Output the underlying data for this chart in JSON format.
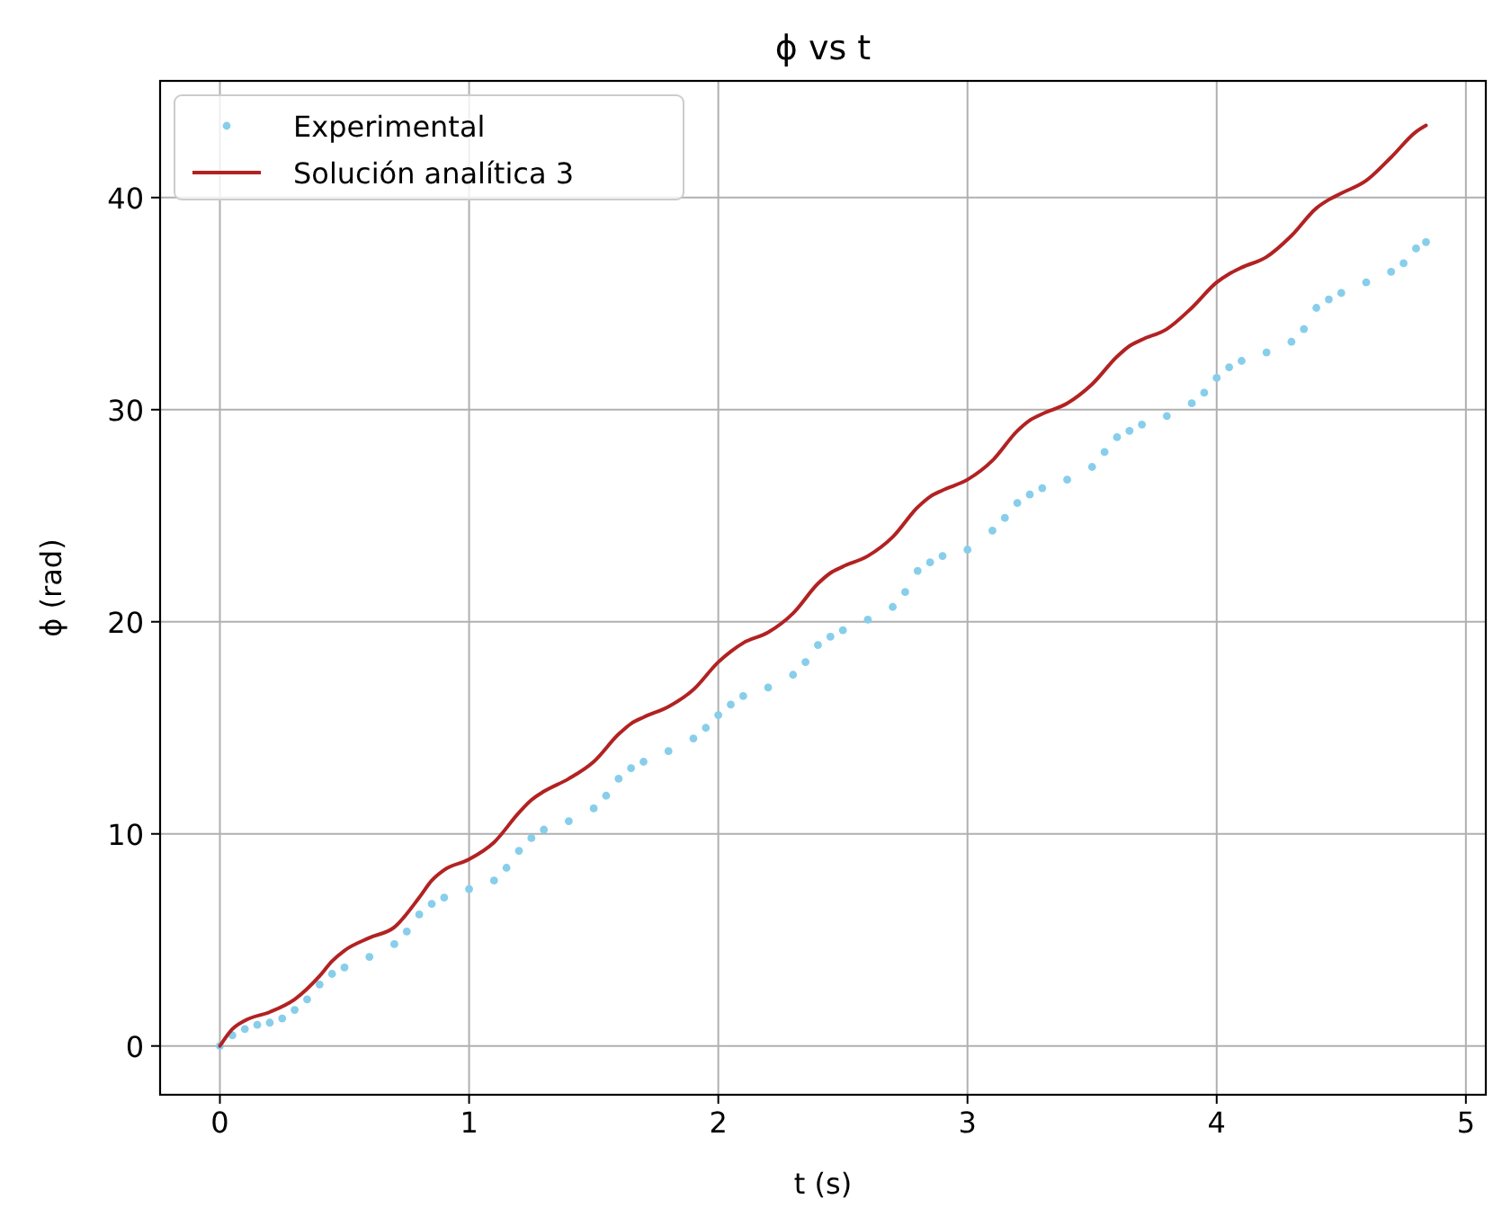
{
  "chart_data": {
    "type": "scatter",
    "title": "ϕ vs t",
    "xlabel": "t (s)",
    "ylabel": "ϕ (rad)",
    "xlim": [
      -0.24,
      5.08
    ],
    "xticks": [
      0,
      1,
      2,
      3,
      4,
      5
    ],
    "ylim": [
      -2.3,
      45.5
    ],
    "yticks": [
      0,
      10,
      20,
      30,
      40
    ],
    "grid": true,
    "legend": "top left",
    "series": [
      {
        "name": "Experimental",
        "marker": "circle",
        "color": "#87ceeb",
        "x": [
          0,
          0.05,
          0.1,
          0.15,
          0.2,
          0.25,
          0.3,
          0.35,
          0.4,
          0.45,
          0.5,
          0.6,
          0.7,
          0.75,
          0.8,
          0.85,
          0.9,
          1.0,
          1.1,
          1.15,
          1.2,
          1.25,
          1.3,
          1.4,
          1.5,
          1.55,
          1.6,
          1.65,
          1.7,
          1.8,
          1.9,
          1.95,
          2.0,
          2.05,
          2.1,
          2.2,
          2.3,
          2.35,
          2.4,
          2.45,
          2.5,
          2.6,
          2.7,
          2.75,
          2.8,
          2.85,
          2.9,
          3.0,
          3.1,
          3.15,
          3.2,
          3.25,
          3.3,
          3.4,
          3.5,
          3.55,
          3.6,
          3.65,
          3.7,
          3.8,
          3.9,
          3.95,
          4.0,
          4.05,
          4.1,
          4.2,
          4.3,
          4.35,
          4.4,
          4.45,
          4.5,
          4.6,
          4.7,
          4.75,
          4.8,
          4.84
        ],
        "values": [
          0,
          0.5,
          0.8,
          1.0,
          1.1,
          1.3,
          1.7,
          2.2,
          2.9,
          3.4,
          3.7,
          4.2,
          4.8,
          5.4,
          6.2,
          6.7,
          7.0,
          7.4,
          7.8,
          8.4,
          9.2,
          9.8,
          10.2,
          10.6,
          11.2,
          11.8,
          12.6,
          13.1,
          13.4,
          13.9,
          14.5,
          15.0,
          15.6,
          16.1,
          16.5,
          16.9,
          17.5,
          18.1,
          18.9,
          19.3,
          19.6,
          20.1,
          20.7,
          21.4,
          22.4,
          22.8,
          23.1,
          23.4,
          24.3,
          24.9,
          25.6,
          26.0,
          26.3,
          26.7,
          27.3,
          28.0,
          28.7,
          29.0,
          29.3,
          29.7,
          30.3,
          30.8,
          31.5,
          32.0,
          32.3,
          32.7,
          33.2,
          33.8,
          34.8,
          35.2,
          35.5,
          36.0,
          36.5,
          36.9,
          37.6,
          37.9
        ]
      },
      {
        "name": "Solución analítica 3",
        "type": "line",
        "color": "#b22222",
        "x": [
          0,
          0.05,
          0.1,
          0.2,
          0.3,
          0.4,
          0.45,
          0.5,
          0.6,
          0.7,
          0.8,
          0.85,
          0.9,
          1.0,
          1.1,
          1.2,
          1.25,
          1.3,
          1.4,
          1.5,
          1.6,
          1.65,
          1.7,
          1.8,
          1.9,
          2.0,
          2.05,
          2.1,
          2.2,
          2.3,
          2.4,
          2.45,
          2.5,
          2.6,
          2.7,
          2.8,
          2.85,
          2.9,
          3.0,
          3.1,
          3.2,
          3.25,
          3.3,
          3.4,
          3.5,
          3.6,
          3.65,
          3.7,
          3.8,
          3.9,
          4.0,
          4.05,
          4.1,
          4.2,
          4.3,
          4.4,
          4.45,
          4.5,
          4.6,
          4.7,
          4.8,
          4.84
        ],
        "values": [
          0,
          0.8,
          1.2,
          1.6,
          2.2,
          3.3,
          4.0,
          4.5,
          5.1,
          5.6,
          7.0,
          7.8,
          8.3,
          8.8,
          9.6,
          11.0,
          11.6,
          12.0,
          12.6,
          13.4,
          14.7,
          15.2,
          15.5,
          16.0,
          16.8,
          18.1,
          18.6,
          19.0,
          19.5,
          20.4,
          21.8,
          22.3,
          22.6,
          23.1,
          24.0,
          25.4,
          25.9,
          26.2,
          26.7,
          27.6,
          29.0,
          29.5,
          29.8,
          30.3,
          31.2,
          32.5,
          33.0,
          33.3,
          33.8,
          34.8,
          36.0,
          36.4,
          36.7,
          37.2,
          38.2,
          39.5,
          39.9,
          40.2,
          40.8,
          41.9,
          43.1,
          43.4
        ]
      }
    ]
  }
}
